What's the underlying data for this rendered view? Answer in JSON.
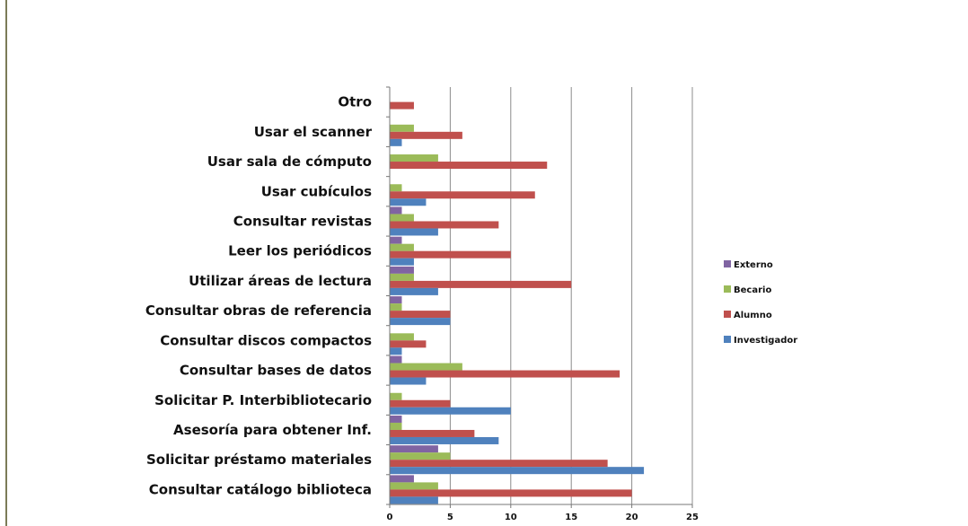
{
  "chart_data": {
    "type": "bar",
    "orientation": "horizontal",
    "title": "",
    "xlabel": "",
    "ylabel": "",
    "xlim": [
      0,
      25
    ],
    "x_ticks": [
      0,
      5,
      10,
      15,
      20,
      25
    ],
    "grid": "vertical",
    "legend_position": "right",
    "categories": [
      "Otro",
      "Usar el scanner",
      "Usar sala de cómputo",
      "Usar cubículos",
      "Consultar revistas",
      "Leer los periódicos",
      "Utilizar áreas de lectura",
      "Consultar obras de referencia",
      "Consultar discos compactos",
      "Consultar bases de datos",
      "Solicitar P. Interbibliotecario",
      "Asesoría para obtener Inf.",
      "Solicitar préstamo materiales",
      "Consultar catálogo biblioteca"
    ],
    "series": [
      {
        "name": "Externo",
        "color": "#8064a2",
        "values": [
          0,
          0,
          0,
          0,
          1,
          1,
          2,
          1,
          0,
          1,
          0,
          1,
          4,
          2
        ]
      },
      {
        "name": "Becario",
        "color": "#9bbb59",
        "values": [
          0,
          2,
          4,
          1,
          2,
          2,
          2,
          1,
          2,
          6,
          1,
          1,
          5,
          4
        ]
      },
      {
        "name": "Alumno",
        "color": "#c0504d",
        "values": [
          2,
          6,
          13,
          12,
          9,
          10,
          15,
          5,
          3,
          19,
          5,
          7,
          18,
          20
        ]
      },
      {
        "name": "Investigador",
        "color": "#4f81bd",
        "values": [
          0,
          1,
          0,
          3,
          4,
          2,
          4,
          5,
          1,
          3,
          10,
          9,
          21,
          4
        ]
      }
    ],
    "legend_order": [
      "Externo",
      "Becario",
      "Alumno",
      "Investigador"
    ]
  }
}
